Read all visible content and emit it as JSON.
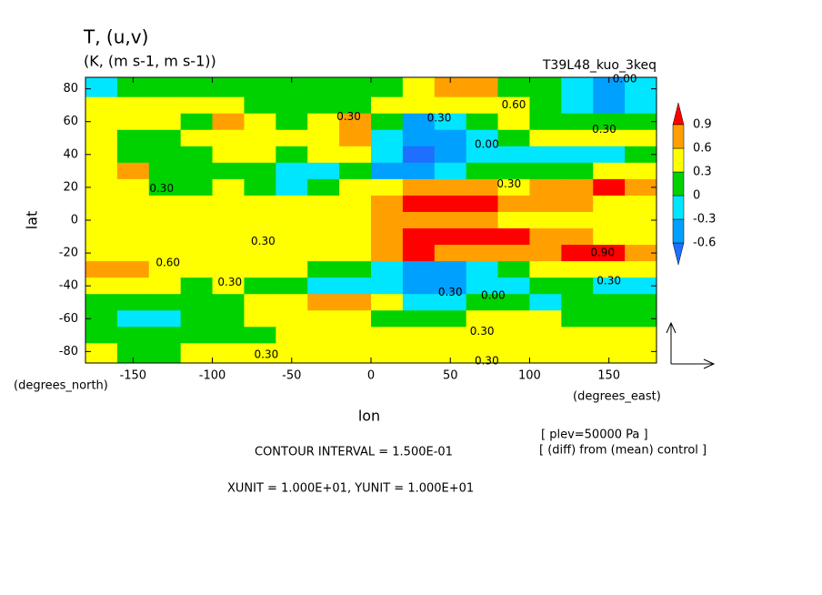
{
  "chart_data": {
    "type": "contour",
    "title": "T, (u,v)",
    "subtitle": "(K, (m s-1, m s-1))",
    "run_label": "T39L48_kuo_3keq",
    "x_label": "lon",
    "y_label": "lat",
    "x_unit_label": "(degrees_east)",
    "y_unit_label": "(degrees_north)",
    "notes": [
      "[ plev=50000 Pa ]",
      "[ (diff) from (mean) control ]"
    ],
    "contour_interval": "CONTOUR INTERVAL = 1.500E-01",
    "vector_units": "XUNIT = 1.000E+01, YUNIT = 1.000E+01",
    "xlim": [
      -180,
      180
    ],
    "ylim": [
      -87,
      87
    ],
    "xticks": [
      -150,
      -100,
      -50,
      0,
      50,
      100,
      150
    ],
    "yticks": [
      -80,
      -60,
      -40,
      -20,
      0,
      20,
      40,
      60,
      80
    ],
    "lon": [
      -170,
      -150,
      -130,
      -110,
      -90,
      -70,
      -50,
      -30,
      -10,
      10,
      30,
      50,
      70,
      90,
      110,
      130,
      150,
      170
    ],
    "lat": [
      80,
      70,
      60,
      50,
      40,
      30,
      20,
      10,
      0,
      -10,
      -20,
      -30,
      -40,
      -50,
      -60,
      -70,
      -80
    ],
    "values": [
      [
        -0.1,
        0.15,
        0.15,
        0.15,
        0.15,
        0.15,
        0.15,
        0.15,
        0.15,
        0.15,
        0.35,
        0.7,
        0.7,
        0.2,
        0.15,
        -0.1,
        -0.35,
        -0.1
      ],
      [
        0.4,
        0.4,
        0.45,
        0.4,
        0.35,
        0.2,
        0.15,
        0.1,
        0.2,
        0.35,
        0.45,
        0.55,
        0.45,
        0.35,
        0.15,
        -0.15,
        -0.4,
        -0.15
      ],
      [
        0.4,
        0.45,
        0.4,
        0.2,
        0.65,
        0.4,
        0.2,
        0.5,
        0.7,
        0.05,
        -0.35,
        -0.2,
        0.15,
        0.35,
        0.2,
        0.15,
        0.15,
        0.15
      ],
      [
        0.4,
        0.2,
        0.2,
        0.4,
        0.5,
        0.4,
        0.4,
        0.4,
        0.6,
        -0.2,
        -0.5,
        -0.45,
        -0.1,
        0.15,
        0.35,
        0.4,
        0.4,
        0.4
      ],
      [
        0.3,
        0.2,
        0.2,
        0.15,
        0.4,
        0.4,
        0.2,
        0.4,
        0.35,
        -0.25,
        -0.65,
        -0.5,
        -0.2,
        -0.15,
        -0.15,
        -0.15,
        -0.1,
        0.1
      ],
      [
        0.4,
        0.65,
        0.2,
        0.15,
        0.15,
        0.15,
        -0.15,
        -0.15,
        0.1,
        -0.4,
        -0.4,
        -0.1,
        0.1,
        0.15,
        0.15,
        0.2,
        0.35,
        0.4
      ],
      [
        0.4,
        0.4,
        0.2,
        0.15,
        0.35,
        0.2,
        -0.1,
        0.15,
        0.4,
        0.45,
        0.7,
        0.75,
        0.7,
        0.5,
        0.65,
        0.75,
        0.95,
        0.7
      ],
      [
        0.4,
        0.4,
        0.45,
        0.4,
        0.4,
        0.4,
        0.4,
        0.4,
        0.45,
        0.65,
        0.95,
        1.0,
        0.95,
        0.7,
        0.65,
        0.6,
        0.5,
        0.45
      ],
      [
        0.45,
        0.4,
        0.4,
        0.4,
        0.4,
        0.4,
        0.4,
        0.4,
        0.4,
        0.6,
        0.7,
        0.7,
        0.65,
        0.5,
        0.45,
        0.45,
        0.45,
        0.4
      ],
      [
        0.4,
        0.4,
        0.4,
        0.35,
        0.35,
        0.4,
        0.4,
        0.4,
        0.45,
        0.65,
        0.95,
        1.0,
        0.95,
        0.9,
        0.7,
        0.65,
        0.55,
        0.45
      ],
      [
        0.55,
        0.45,
        0.4,
        0.4,
        0.4,
        0.4,
        0.4,
        0.4,
        0.45,
        0.7,
        0.95,
        0.75,
        0.7,
        0.7,
        0.75,
        0.95,
        0.95,
        0.75
      ],
      [
        0.75,
        0.65,
        0.4,
        0.4,
        0.4,
        0.35,
        0.35,
        0.2,
        0.0,
        -0.15,
        -0.45,
        -0.45,
        -0.15,
        0.2,
        0.35,
        0.4,
        0.4,
        0.4
      ],
      [
        0.4,
        0.35,
        0.35,
        0.2,
        0.35,
        0.2,
        0.15,
        -0.1,
        -0.1,
        -0.2,
        -0.5,
        -0.6,
        -0.15,
        -0.1,
        0.1,
        0.1,
        -0.1,
        -0.15
      ],
      [
        0.15,
        0.15,
        0.15,
        0.15,
        0.2,
        0.35,
        0.4,
        0.65,
        0.6,
        0.3,
        -0.15,
        -0.1,
        0.1,
        0.15,
        -0.1,
        0.15,
        0.15,
        0.15
      ],
      [
        0.15,
        -0.15,
        -0.15,
        0.15,
        0.2,
        0.35,
        0.4,
        0.45,
        0.4,
        0.2,
        0.15,
        0.2,
        0.35,
        0.4,
        0.35,
        0.2,
        0.15,
        0.15
      ],
      [
        0.15,
        0.15,
        0.15,
        0.2,
        0.2,
        0.2,
        0.35,
        0.4,
        0.4,
        0.4,
        0.4,
        0.4,
        0.35,
        0.4,
        0.4,
        0.4,
        0.4,
        0.4
      ],
      [
        0.4,
        0.2,
        0.2,
        0.35,
        0.4,
        0.4,
        0.4,
        0.4,
        0.4,
        0.4,
        0.4,
        0.4,
        0.35,
        0.4,
        0.4,
        0.4,
        0.4,
        0.4
      ]
    ],
    "levels": [
      -0.6,
      -0.3,
      0,
      0.3,
      0.6,
      0.9
    ],
    "colors": [
      "#1e6eff",
      "#00a0ff",
      "#00e6ff",
      "#00d200",
      "#ffff00",
      "#ffa000",
      "#ff0000"
    ],
    "contour_labels": [
      {
        "lon": -14,
        "lat": 63,
        "text": {
          "value": 0.3,
          "label": "0.30"
        }
      },
      {
        "lon": 90,
        "lat": 70,
        "text": {
          "value": 0.6,
          "label": "0.60"
        }
      },
      {
        "lon": 43,
        "lat": 62,
        "text": {
          "value": 0.3,
          "label": "0.30"
        }
      },
      {
        "lon": 147,
        "lat": 55,
        "text": {
          "value": 0.3,
          "label": "0.30"
        }
      },
      {
        "lon": 160,
        "lat": 86,
        "text": {
          "value": 0,
          "label": "0.00"
        }
      },
      {
        "lon": 73,
        "lat": 46,
        "text": {
          "value": 0,
          "label": "0.00"
        }
      },
      {
        "lon": 87,
        "lat": 22,
        "text": {
          "value": 0.3,
          "label": "0.30"
        }
      },
      {
        "lon": -132,
        "lat": 19,
        "text": {
          "value": 0.3,
          "label": "0.30"
        }
      },
      {
        "lon": -68,
        "lat": -13,
        "text": {
          "value": 0.3,
          "label": "0.30"
        }
      },
      {
        "lon": -128,
        "lat": -26,
        "text": {
          "value": 0.6,
          "label": "0.60"
        }
      },
      {
        "lon": -89,
        "lat": -38,
        "text": {
          "value": 0.3,
          "label": "0.30"
        }
      },
      {
        "lon": 146,
        "lat": -20,
        "text": {
          "value": 0.9,
          "label": "0.90"
        }
      },
      {
        "lon": 150,
        "lat": -37,
        "text": {
          "value": 0.3,
          "label": "0.30"
        }
      },
      {
        "lon": 77,
        "lat": -46,
        "text": {
          "value": 0,
          "label": "0.00"
        }
      },
      {
        "lon": 50,
        "lat": -44,
        "text": {
          "value": 0.3,
          "label": "0.30"
        }
      },
      {
        "lon": 70,
        "lat": -68,
        "text": {
          "value": 0.3,
          "label": "0.30"
        }
      },
      {
        "lon": -66,
        "lat": -82,
        "text": {
          "value": 0.3,
          "label": "0.30"
        }
      },
      {
        "lon": 73,
        "lat": -86,
        "text": {
          "value": 0.3,
          "label": "0.30"
        }
      }
    ]
  }
}
